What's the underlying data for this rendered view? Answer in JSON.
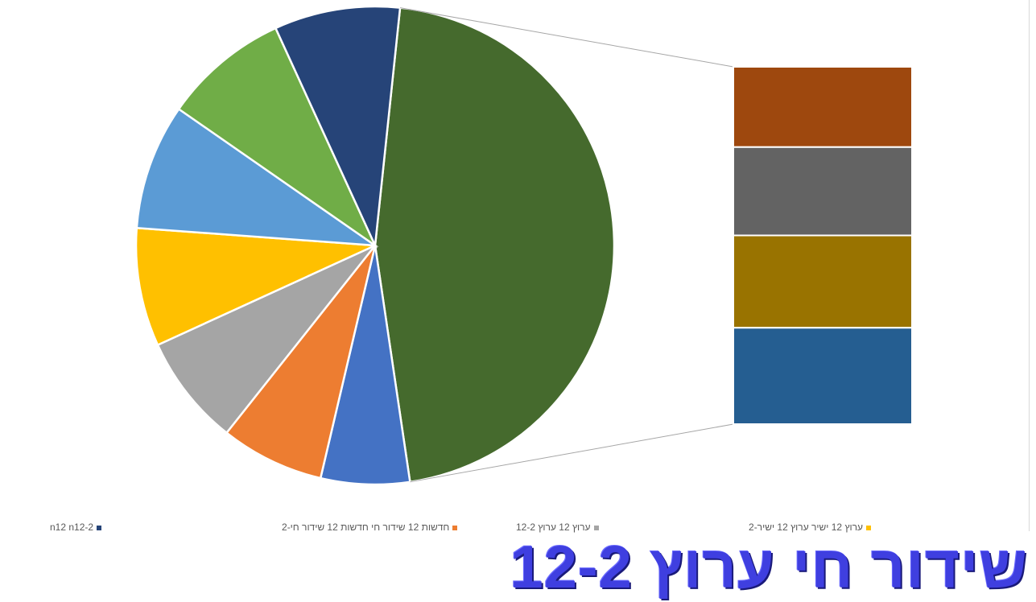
{
  "chart_data": {
    "type": "pie-of-bar",
    "slices": [
      {
        "value": 46,
        "color": "#456a2d"
      },
      {
        "value": 6,
        "color": "#4472c4"
      },
      {
        "value": 7,
        "color": "#ed7d31"
      },
      {
        "value": 7.5,
        "color": "#a5a5a5"
      },
      {
        "value": 8,
        "color": "#ffc000"
      },
      {
        "value": 8.5,
        "color": "#5b9bd5"
      },
      {
        "value": 8.5,
        "color": "#70ad47"
      },
      {
        "value": 8.5,
        "color": "#264478"
      }
    ],
    "bar_segments": [
      {
        "value": 10,
        "color": "#9e480e"
      },
      {
        "value": 11,
        "color": "#636363"
      },
      {
        "value": 11.5,
        "color": "#997300"
      },
      {
        "value": 12,
        "color": "#255e91"
      }
    ],
    "legend": [
      {
        "label": "n12 n12-2",
        "color": "#264478"
      },
      {
        "label": "חדשות 12 שידור חי חדשות 12 שידור חי-2",
        "color": "#ed7d31"
      },
      {
        "label": "ערוץ 12 ערוץ 12-2",
        "color": "#a5a5a5"
      },
      {
        "label": "ערוץ 12 ישיר ערוץ 12 ישיר-2",
        "color": "#ffc000"
      }
    ]
  },
  "banner": {
    "text": "שידור חי ערוץ 12-2"
  }
}
